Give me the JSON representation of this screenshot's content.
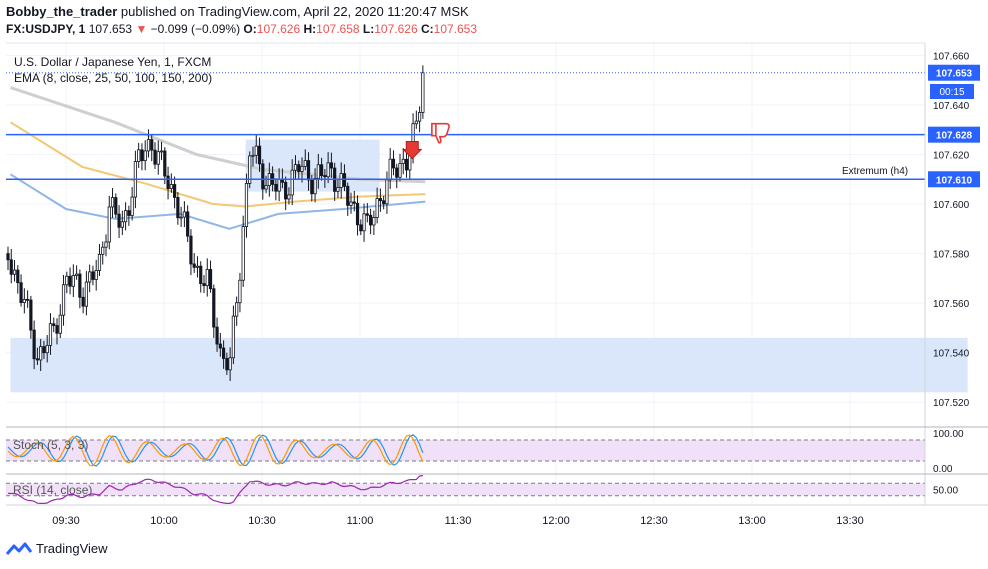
{
  "header": {
    "author": "Bobby_the_trader",
    "published_text": "published on TradingView.com, April 22, 2020 11:20:47 MSK",
    "symbol": "FX:USDJPY, 1",
    "last": "107.653",
    "change": "−0.099 (−0.09%)",
    "o_label": "O:",
    "o": "107.626",
    "h_label": "H:",
    "h": "107.658",
    "l_label": "L:",
    "l": "107.626",
    "c_label": "C:",
    "c": "107.653"
  },
  "legend": {
    "instrument": "U.S. Dollar / Japanese Yen, 1, FXCM",
    "ema": "EMA (8, close, 25, 50, 100, 150, 200)",
    "stoch": "Stoch (5, 3, 3)",
    "rsi": "RSI (14, close)"
  },
  "annotations": {
    "extremum": "Extremum (h4)",
    "countdown": "00:15"
  },
  "brand": {
    "name": "TradingView"
  },
  "colors": {
    "level_line": "#2962ff",
    "zone_fill": "#d6e4fb",
    "candle": "#131722",
    "ema_yellow": "#f3c873",
    "ema_blue": "#90b6e8",
    "ema_gray": "#cfcfcf",
    "arrow_red": "#e53935",
    "stoch_k": "#2196f3",
    "stoch_d": "#ff9800",
    "rsi": "#9c27b0",
    "osc_fill": "#f0e0f8"
  },
  "chart_data": {
    "type": "candlestick",
    "y_axis": {
      "min": 107.51,
      "max": 107.665,
      "ticks": [
        "107.660",
        "107.640",
        "107.620",
        "107.600",
        "107.580",
        "107.560",
        "107.540",
        "107.520"
      ]
    },
    "x_axis": {
      "ticks": [
        "09:30",
        "10:00",
        "10:30",
        "11:00",
        "11:30",
        "12:00",
        "12:30",
        "13:00",
        "13:30"
      ]
    },
    "price_labels": [
      {
        "value": 107.653,
        "text": "107.653"
      },
      {
        "value": 107.628,
        "text": "107.628"
      },
      {
        "value": 107.61,
        "text": "107.610"
      }
    ],
    "horizontal_levels": [
      107.628,
      107.61
    ],
    "zones": [
      {
        "x_start": "09:13",
        "x_end": "14:06",
        "y_low": 107.524,
        "y_high": 107.546
      },
      {
        "x_start": "10:25",
        "x_end": "11:06",
        "y_low": 107.605,
        "y_high": 107.626
      }
    ],
    "ohlc_waypoints": [
      {
        "t": "09:13",
        "price": 107.58
      },
      {
        "t": "09:18",
        "price": 107.56
      },
      {
        "t": "09:22",
        "price": 107.538
      },
      {
        "t": "09:27",
        "price": 107.548
      },
      {
        "t": "09:31",
        "price": 107.57
      },
      {
        "t": "09:36",
        "price": 107.565
      },
      {
        "t": "09:41",
        "price": 107.575
      },
      {
        "t": "09:44",
        "price": 107.6
      },
      {
        "t": "09:48",
        "price": 107.59
      },
      {
        "t": "09:53",
        "price": 107.618
      },
      {
        "t": "09:57",
        "price": 107.625
      },
      {
        "t": "10:01",
        "price": 107.612
      },
      {
        "t": "10:05",
        "price": 107.6
      },
      {
        "t": "10:10",
        "price": 107.575
      },
      {
        "t": "10:14",
        "price": 107.568
      },
      {
        "t": "10:18",
        "price": 107.54
      },
      {
        "t": "10:21",
        "price": 107.535
      },
      {
        "t": "10:24",
        "price": 107.575
      },
      {
        "t": "10:27",
        "price": 107.622
      },
      {
        "t": "10:32",
        "price": 107.61
      },
      {
        "t": "10:37",
        "price": 107.605
      },
      {
        "t": "10:42",
        "price": 107.615
      },
      {
        "t": "10:47",
        "price": 107.61
      },
      {
        "t": "10:52",
        "price": 107.614
      },
      {
        "t": "10:57",
        "price": 107.602
      },
      {
        "t": "11:03",
        "price": 107.59
      },
      {
        "t": "11:06",
        "price": 107.6
      },
      {
        "t": "11:11",
        "price": 107.614
      },
      {
        "t": "11:15",
        "price": 107.618
      },
      {
        "t": "11:18",
        "price": 107.63
      },
      {
        "t": "11:20",
        "price": 107.653
      }
    ],
    "ema_series": [
      {
        "name": "EMA gray",
        "points": [
          [
            "09:13",
            107.647
          ],
          [
            "09:45",
            107.633
          ],
          [
            "10:10",
            107.62
          ],
          [
            "10:30",
            107.614
          ],
          [
            "11:00",
            107.61
          ],
          [
            "11:20",
            107.609
          ]
        ]
      },
      {
        "name": "EMA yellow",
        "points": [
          [
            "09:13",
            107.633
          ],
          [
            "09:35",
            107.615
          ],
          [
            "09:55",
            107.608
          ],
          [
            "10:15",
            107.6
          ],
          [
            "10:25",
            107.599
          ],
          [
            "10:40",
            107.601
          ],
          [
            "11:00",
            107.603
          ],
          [
            "11:20",
            107.604
          ]
        ]
      },
      {
        "name": "EMA blue",
        "points": [
          [
            "09:13",
            107.612
          ],
          [
            "09:30",
            107.598
          ],
          [
            "09:45",
            107.594
          ],
          [
            "10:05",
            107.596
          ],
          [
            "10:20",
            107.59
          ],
          [
            "10:35",
            107.596
          ],
          [
            "10:55",
            107.598
          ],
          [
            "11:20",
            107.601
          ]
        ]
      }
    ],
    "stoch": {
      "y_ticks": [
        "100.00",
        "0.00"
      ],
      "levels": [
        80,
        20
      ]
    },
    "rsi": {
      "y_ticks": [
        "50.00"
      ],
      "levels": [
        70,
        30
      ]
    }
  }
}
